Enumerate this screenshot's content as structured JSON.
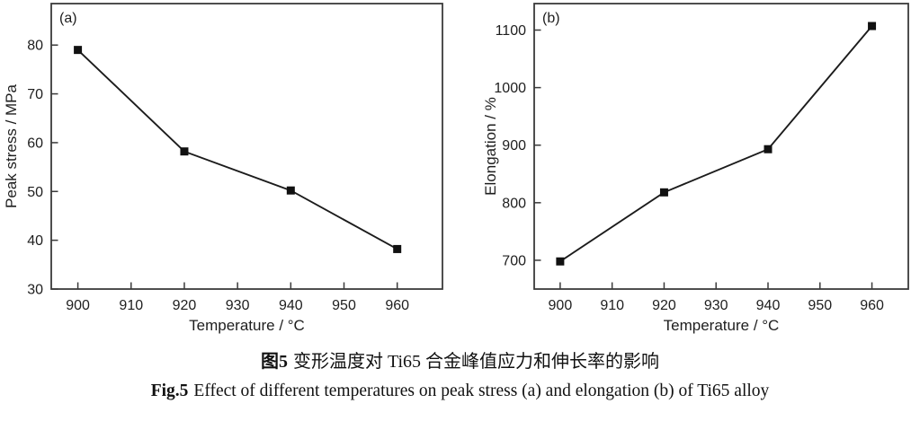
{
  "figure": {
    "caption_zh_label": "图5",
    "caption_zh_text": "变形温度对 Ti65 合金峰值应力和伸长率的影响",
    "caption_en_label": "Fig.5",
    "caption_en_text": "Effect of different temperatures on peak stress (a) and elongation (b) of Ti65 alloy"
  },
  "chart_data": [
    {
      "type": "line",
      "panel_label": "(a)",
      "title": "",
      "xlabel": "Temperature / °C",
      "ylabel": "Peak stress / MPa",
      "x": [
        900,
        920,
        940,
        960
      ],
      "values": [
        79,
        58.2,
        50.2,
        38.2
      ],
      "xlim": [
        895,
        968.5
      ],
      "ylim": [
        30,
        88.5
      ],
      "xticks": [
        900,
        910,
        920,
        930,
        940,
        950,
        960
      ],
      "yticks": [
        30,
        40,
        50,
        60,
        70,
        80
      ],
      "grid": false,
      "legend": null,
      "marker": "square",
      "line_color": "#1c1c1c",
      "marker_color": "#111111",
      "axis_color": "#3a3a3a"
    },
    {
      "type": "line",
      "panel_label": "(b)",
      "title": "",
      "xlabel": "Temperature / °C",
      "ylabel": "Elongation / %",
      "x": [
        900,
        920,
        940,
        960
      ],
      "values": [
        698,
        818,
        893,
        1107
      ],
      "xlim": [
        895,
        967
      ],
      "ylim": [
        650,
        1146
      ],
      "xticks": [
        900,
        910,
        920,
        930,
        940,
        950,
        960
      ],
      "yticks": [
        700,
        800,
        900,
        1000,
        1100
      ],
      "grid": false,
      "legend": null,
      "marker": "square",
      "line_color": "#1c1c1c",
      "marker_color": "#111111",
      "axis_color": "#3a3a3a"
    }
  ]
}
